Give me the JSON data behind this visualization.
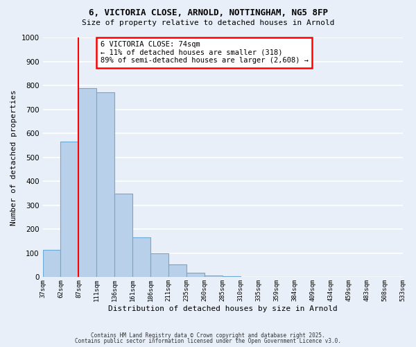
{
  "title_line1": "6, VICTORIA CLOSE, ARNOLD, NOTTINGHAM, NG5 8FP",
  "title_line2": "Size of property relative to detached houses in Arnold",
  "xlabel": "Distribution of detached houses by size in Arnold",
  "ylabel": "Number of detached properties",
  "bar_values": [
    115,
    565,
    790,
    770,
    350,
    165,
    100,
    53,
    18,
    8,
    5,
    2,
    1,
    1,
    0,
    0,
    0,
    0,
    0,
    0
  ],
  "categories": [
    "37sqm",
    "62sqm",
    "87sqm",
    "111sqm",
    "136sqm",
    "161sqm",
    "186sqm",
    "211sqm",
    "235sqm",
    "260sqm",
    "285sqm",
    "310sqm",
    "335sqm",
    "359sqm",
    "384sqm",
    "409sqm",
    "434sqm",
    "459sqm",
    "483sqm",
    "508sqm",
    "533sqm"
  ],
  "bar_color": "#b8d0ea",
  "bar_edge_color": "#6aaad4",
  "bg_color": "#e8eff8",
  "grid_color": "#ffffff",
  "red_line_x": 2,
  "ylim": [
    0,
    1000
  ],
  "yticks": [
    0,
    100,
    200,
    300,
    400,
    500,
    600,
    700,
    800,
    900,
    1000
  ],
  "annotation_title": "6 VICTORIA CLOSE: 74sqm",
  "annotation_line1": "← 11% of detached houses are smaller (318)",
  "annotation_line2": "89% of semi-detached houses are larger (2,608) →",
  "footnote1": "Contains HM Land Registry data © Crown copyright and database right 2025.",
  "footnote2": "Contains public sector information licensed under the Open Government Licence v3.0."
}
